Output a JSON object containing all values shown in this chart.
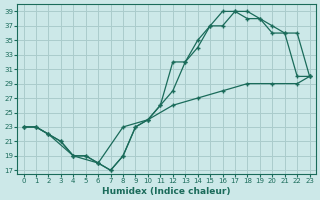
{
  "xlabel": "Humidex (Indice chaleur)",
  "bg_color": "#cce8e8",
  "grid_color": "#aacccc",
  "line_color": "#1a6b5a",
  "xlim": [
    -0.5,
    23.5
  ],
  "ylim": [
    16.5,
    40
  ],
  "xticks": [
    0,
    1,
    2,
    3,
    4,
    5,
    6,
    7,
    8,
    9,
    10,
    11,
    12,
    13,
    14,
    15,
    16,
    17,
    18,
    19,
    20,
    21,
    22,
    23
  ],
  "yticks": [
    17,
    19,
    21,
    23,
    25,
    27,
    29,
    31,
    33,
    35,
    37,
    39
  ],
  "line1_x": [
    0,
    1,
    2,
    3,
    4,
    5,
    6,
    7,
    8,
    9,
    10,
    11,
    12,
    13,
    14,
    15,
    16,
    17,
    18,
    19,
    20,
    21,
    22,
    23
  ],
  "line1_y": [
    23,
    23,
    22,
    21,
    19,
    19,
    18,
    17,
    19,
    23,
    24,
    26,
    28,
    32,
    34,
    37,
    39,
    39,
    39,
    38,
    36,
    36,
    30,
    30
  ],
  "line2_x": [
    0,
    1,
    2,
    3,
    4,
    5,
    6,
    7,
    8,
    9,
    10,
    11,
    12,
    13,
    14,
    15,
    16,
    17,
    18,
    19,
    20,
    21,
    22,
    23
  ],
  "line2_y": [
    23,
    23,
    22,
    21,
    19,
    19,
    18,
    17,
    19,
    23,
    24,
    26,
    32,
    32,
    35,
    37,
    37,
    39,
    38,
    38,
    37,
    36,
    36,
    30
  ],
  "line3_x": [
    0,
    1,
    2,
    4,
    6,
    8,
    10,
    12,
    14,
    16,
    18,
    20,
    22,
    23
  ],
  "line3_y": [
    23,
    23,
    22,
    19,
    18,
    23,
    24,
    26,
    27,
    28,
    29,
    29,
    29,
    30
  ]
}
